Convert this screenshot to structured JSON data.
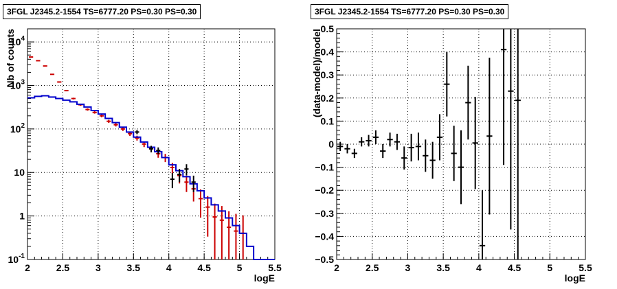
{
  "chart_data": [
    {
      "type": "line",
      "title": "3FGL J2345.2-1554 TS=6777.20 PS=0.30 PS=0.30",
      "xlabel": "logE",
      "ylabel": "Nb of counts",
      "yscale": "log",
      "xlim": [
        2,
        5.5
      ],
      "ylim": [
        0.1,
        20000
      ],
      "grid": true,
      "x_ticks": [
        "2",
        "2.5",
        "3",
        "3.5",
        "4",
        "4.5",
        "5",
        "5.5"
      ],
      "y_ticks": [
        "10^{-1}",
        "1",
        "10",
        "10^{2}",
        "10^{3}",
        "10^{4}"
      ],
      "series": [
        {
          "color": "#cc0000",
          "style": "errorbar",
          "x": [
            2.05,
            2.15,
            2.25,
            2.35,
            2.45,
            2.55,
            2.65,
            2.75,
            2.85,
            2.95,
            3.05,
            3.15,
            3.25,
            3.35,
            3.45,
            3.55,
            3.65,
            3.75,
            3.85,
            3.95,
            4.05,
            4.15,
            4.25,
            4.35,
            4.45,
            4.55,
            4.65,
            4.75,
            4.85,
            4.95,
            5.05
          ],
          "values": [
            4500,
            3700,
            2800,
            1800,
            1200,
            760,
            500,
            360,
            280,
            240,
            200,
            150,
            125,
            100,
            78,
            62,
            45,
            35,
            27,
            22,
            13,
            8.5,
            6,
            4.2,
            2.5,
            1.6,
            0.95,
            0.8,
            0.55,
            0.45,
            0.4
          ]
        },
        {
          "color": "#0000cc",
          "style": "step",
          "x": [
            2.05,
            2.15,
            2.25,
            2.35,
            2.45,
            2.55,
            2.65,
            2.75,
            2.85,
            2.95,
            3.05,
            3.15,
            3.25,
            3.35,
            3.45,
            3.55,
            3.65,
            3.75,
            3.85,
            3.95,
            4.05,
            4.15,
            4.25,
            4.35,
            4.45,
            4.55,
            4.65,
            4.75,
            4.85,
            4.95,
            5.05,
            5.15,
            5.25,
            5.35,
            5.45
          ],
          "values": [
            520,
            560,
            580,
            540,
            500,
            460,
            420,
            370,
            320,
            265,
            220,
            175,
            140,
            110,
            85,
            65,
            50,
            38,
            30,
            22,
            15,
            11,
            8,
            5.5,
            3.8,
            2.6,
            1.8,
            1.3,
            0.9,
            0.6,
            0.4,
            0.2,
            0.1,
            0.1,
            0.1
          ]
        },
        {
          "color": "#000000",
          "style": "errorbar",
          "x": [
            3.55,
            3.75,
            3.85,
            4.05,
            4.15,
            4.25,
            4.35
          ],
          "values": [
            85,
            35,
            32,
            7,
            9,
            12,
            6
          ]
        }
      ]
    },
    {
      "type": "scatter",
      "title": "3FGL J2345.2-1554 TS=6777.20 PS=0.30 PS=0.30",
      "xlabel": "logE",
      "ylabel": "(data-model)/model",
      "xlim": [
        2,
        5.5
      ],
      "ylim": [
        -0.5,
        0.5
      ],
      "grid": true,
      "x_ticks": [
        "2",
        "2.5",
        "3",
        "3.5",
        "4",
        "4.5",
        "5",
        "5.5"
      ],
      "y_ticks": [
        "-0.5",
        "-0.4",
        "-0.3",
        "-0.2",
        "-0.1",
        "0",
        "0.1",
        "0.2",
        "0.3",
        "0.4",
        "0.5"
      ],
      "series": [
        {
          "color": "#000000",
          "x": [
            2.05,
            2.15,
            2.25,
            2.35,
            2.45,
            2.55,
            2.65,
            2.75,
            2.85,
            2.95,
            3.05,
            3.15,
            3.25,
            3.35,
            3.45,
            3.55,
            3.65,
            3.75,
            3.85,
            3.95,
            4.05,
            4.15,
            4.35,
            4.45,
            4.55
          ],
          "y": [
            -0.01,
            -0.02,
            -0.04,
            0.01,
            0.015,
            0.03,
            -0.03,
            0.02,
            0.01,
            -0.06,
            -0.015,
            -0.01,
            -0.05,
            -0.07,
            0.03,
            0.26,
            -0.04,
            -0.1,
            0.18,
            0.005,
            -0.44,
            0.035,
            0.41,
            0.23,
            0.19
          ],
          "err": [
            0.02,
            0.02,
            0.02,
            0.02,
            0.025,
            0.03,
            0.03,
            0.03,
            0.035,
            0.05,
            0.06,
            0.06,
            0.07,
            0.08,
            0.1,
            0.14,
            0.12,
            0.16,
            0.16,
            0.2,
            0.24,
            0.34,
            0.5,
            0.6,
            0.7
          ]
        }
      ]
    }
  ]
}
